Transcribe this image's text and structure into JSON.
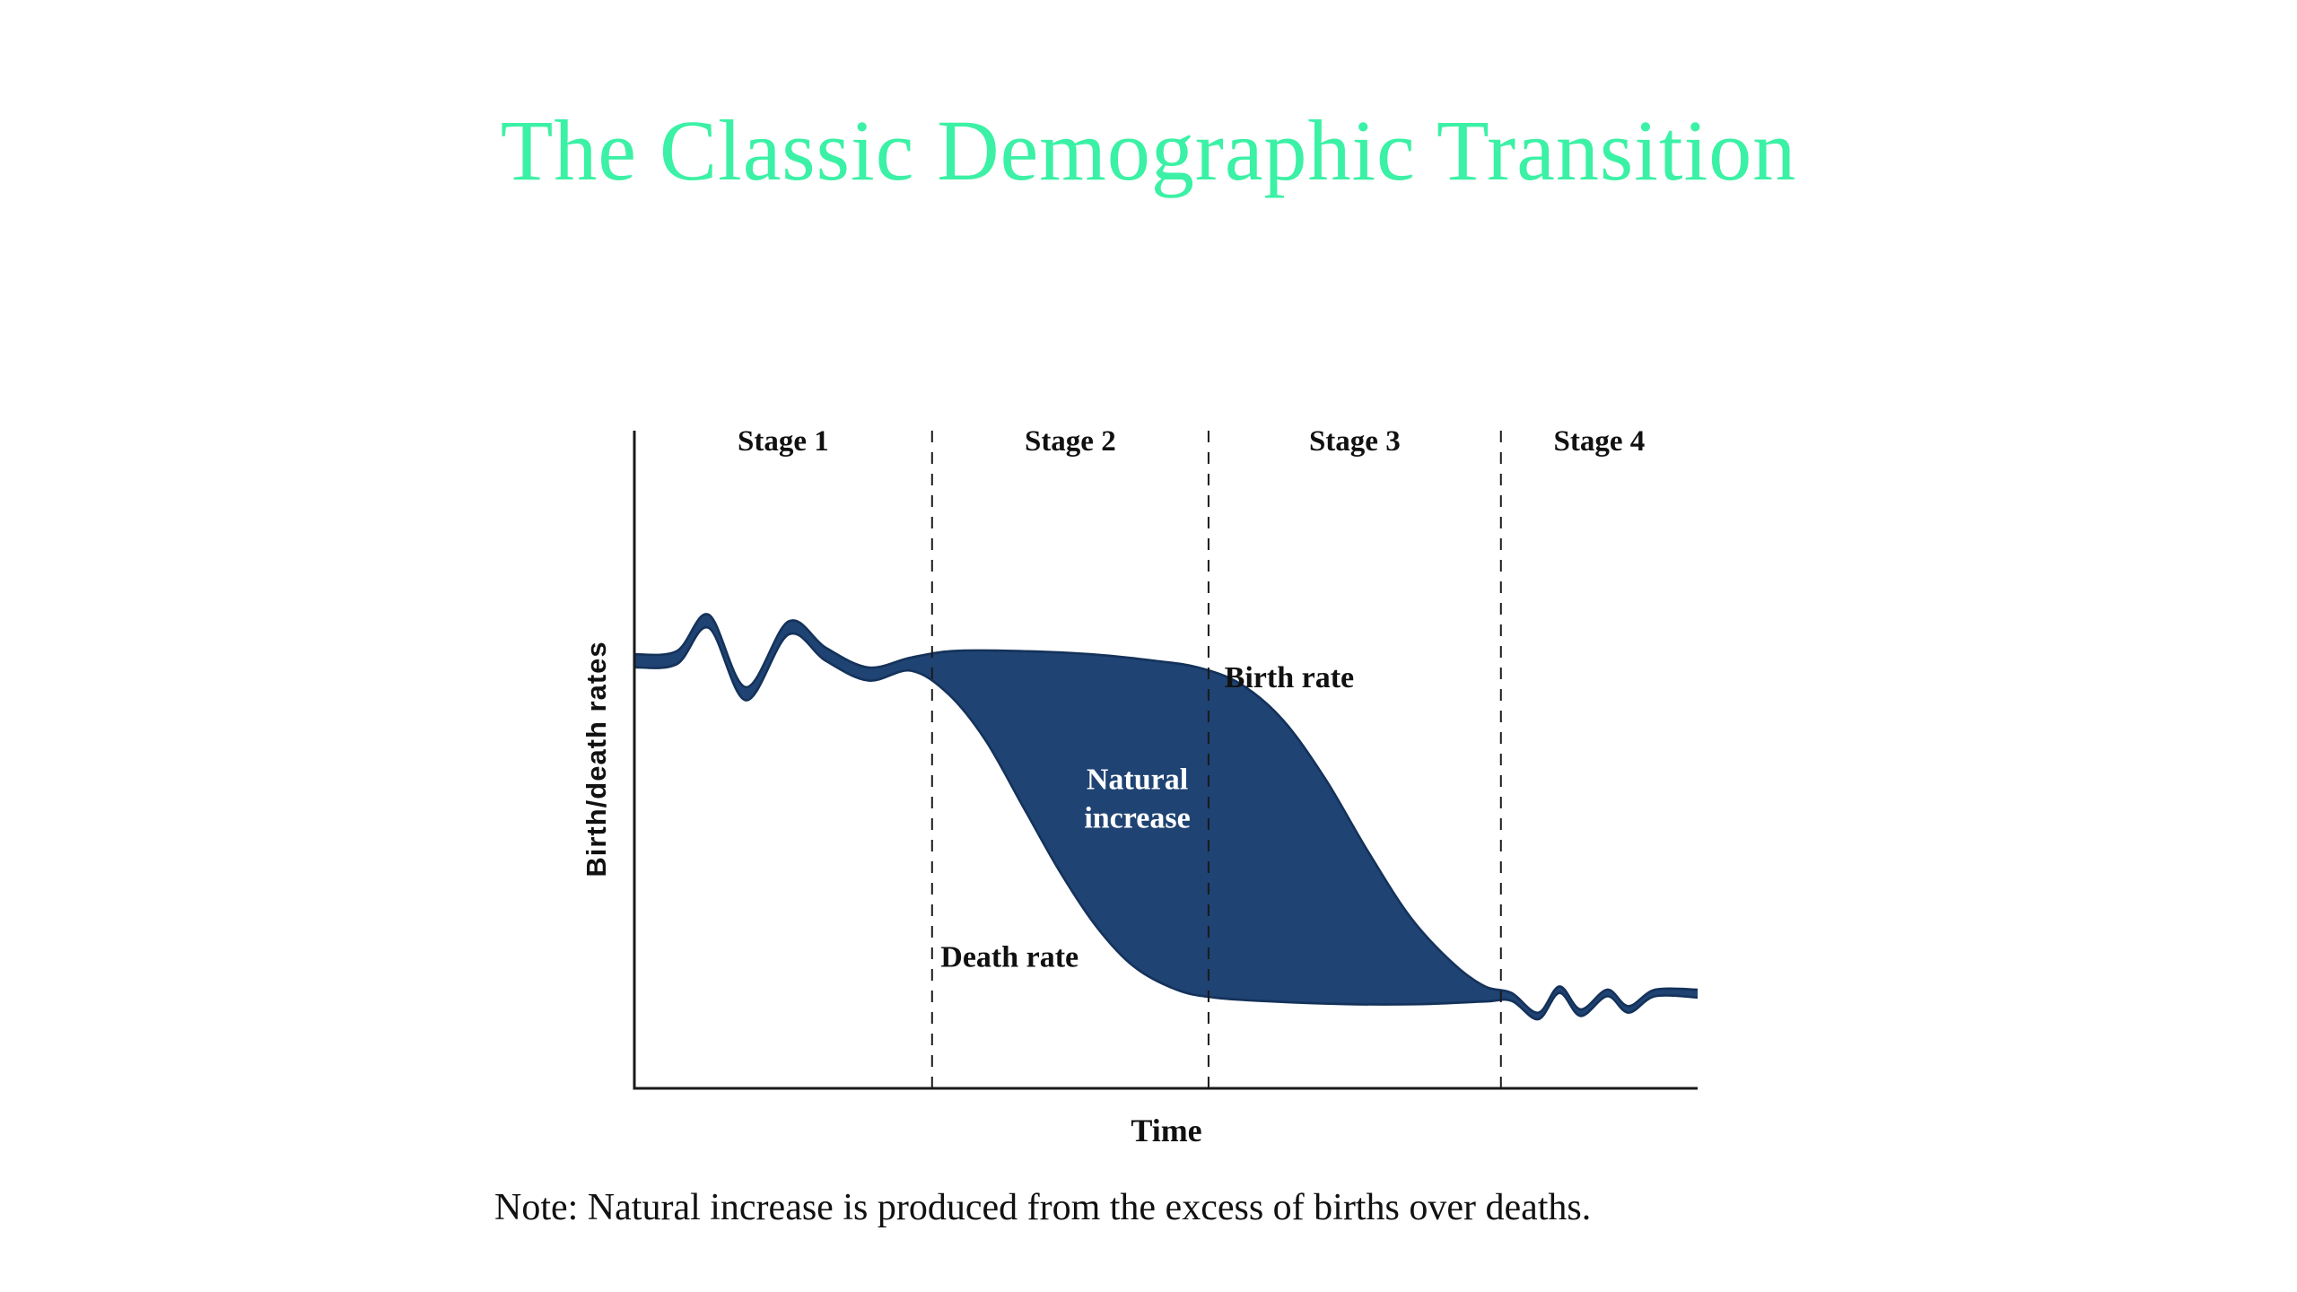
{
  "page": {
    "title": "The Classic Demographic Transition",
    "title_color": "#3bf1a5",
    "note": "Note: Natural increase is produced from the excess of births over deaths."
  },
  "chart_data": {
    "type": "area",
    "title": "The Classic Demographic Transition",
    "xlabel": "Time",
    "ylabel": "Birth/death rates",
    "x_range": [
      0,
      100
    ],
    "y_range": [
      0,
      100
    ],
    "axes": {
      "ticks": "none",
      "grid": false
    },
    "stages": [
      {
        "label": "Stage 1",
        "x_start": 0,
        "x_end": 28
      },
      {
        "label": "Stage 2",
        "x_start": 28,
        "x_end": 54
      },
      {
        "label": "Stage 3",
        "x_start": 54,
        "x_end": 81.5
      },
      {
        "label": "Stage 4",
        "x_start": 81.5,
        "x_end": 100
      }
    ],
    "series": [
      {
        "name": "Birth rate",
        "color": "#14325a",
        "x": [
          0,
          4,
          7,
          10.5,
          14.5,
          18,
          22,
          26,
          30,
          36,
          43,
          49,
          53,
          57,
          61,
          65,
          69,
          73,
          77,
          80,
          82.5,
          85,
          87,
          89,
          91.5,
          93.5,
          96,
          100
        ],
        "values": [
          66,
          66.5,
          72,
          61,
          71,
          67,
          64,
          65.5,
          66.5,
          66.5,
          66,
          65,
          64,
          61.5,
          56,
          47,
          36,
          26,
          19,
          15.5,
          14.5,
          11.5,
          15.5,
          12,
          15,
          12.5,
          15,
          15
        ]
      },
      {
        "name": "Death rate",
        "color": "#14325a",
        "x": [
          0,
          4,
          7,
          10.5,
          14.5,
          18,
          22,
          26,
          29.5,
          33,
          36.5,
          40,
          43.5,
          47,
          51,
          54.5,
          60,
          67,
          74,
          80,
          82.5,
          85,
          87,
          89,
          91.5,
          93.5,
          96,
          100
        ],
        "values": [
          64,
          64.5,
          70,
          59,
          69,
          65,
          62,
          63.5,
          60,
          53,
          43,
          33,
          24.5,
          18.5,
          15,
          13.8,
          13.2,
          12.8,
          12.8,
          13.2,
          13.3,
          10.5,
          14.5,
          11,
          14,
          11.5,
          14,
          13.8
        ]
      }
    ],
    "area_between": {
      "label": "Natural increase",
      "between": [
        "Birth rate",
        "Death rate"
      ],
      "fill_color": "#1f4373"
    },
    "annotations": [
      {
        "name": "birth-rate-label",
        "lines": [
          "Birth rate"
        ],
        "x": 55.5,
        "y": 61,
        "color": "#111111",
        "anchor": "start"
      },
      {
        "name": "death-rate-label",
        "lines": [
          "Death rate"
        ],
        "x": 28.8,
        "y": 18.5,
        "color": "#111111",
        "anchor": "start"
      },
      {
        "name": "natural-increase-label",
        "lines": [
          "Natural",
          "increase"
        ],
        "x": 47.3,
        "y": 45.5,
        "color": "#ffffff",
        "anchor": "middle"
      }
    ]
  }
}
